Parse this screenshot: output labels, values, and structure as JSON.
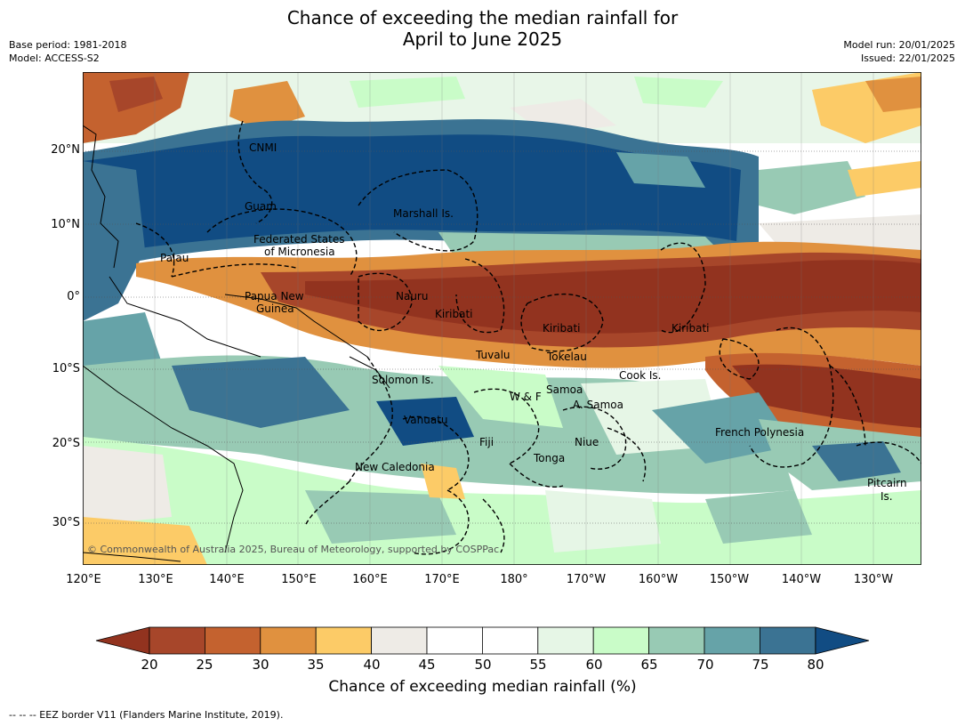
{
  "title": {
    "line1": "Chance of exceeding the median rainfall for",
    "line2": "April to June 2025"
  },
  "meta_left": {
    "base_period": "Base period: 1981-2018",
    "model": "Model: ACCESS-S2"
  },
  "meta_right": {
    "model_run": "Model run: 20/01/2025",
    "issued": "Issued: 22/01/2025"
  },
  "map": {
    "lat_labels": [
      "20°N",
      "10°N",
      "0°",
      "10°S",
      "20°S",
      "30°S"
    ],
    "lon_labels": [
      "120°E",
      "130°E",
      "140°E",
      "150°E",
      "160°E",
      "170°E",
      "180°",
      "170°W",
      "160°W",
      "150°W",
      "140°W",
      "130°W"
    ],
    "places": {
      "cnmi": "CNMI",
      "guam": "Guam",
      "marshall": "Marshall Is.",
      "fsm_1": "Federated States",
      "fsm_2": "of Micronesia",
      "palau": "Palau",
      "png_1": "Papua New",
      "png_2": "Guinea",
      "nauru": "Nauru",
      "kiribati_w": "Kiribati",
      "kiribati_c": "Kiribati",
      "kiribati_e": "Kiribati",
      "tuvalu": "Tuvalu",
      "tokelau": "Tokelau",
      "cook": "Cook Is.",
      "solomon": "Solomon Is.",
      "wf": "W & F",
      "samoa": "Samoa",
      "asamoa": "A. Samoa",
      "vanuatu": "Vanuatu",
      "fiji": "Fiji",
      "niue": "Niue",
      "tonga": "Tonga",
      "french_poly": "French Polynesia",
      "new_caledonia": "New Caledonia",
      "pitcairn_1": "Pitcairn",
      "pitcairn_2": "Is."
    },
    "copyright": "© Commonwealth of Australia 2025, Bureau of Meteorology, supported by COSPPac"
  },
  "colorbar": {
    "ticks": [
      "20",
      "25",
      "30",
      "35",
      "40",
      "45",
      "50",
      "55",
      "60",
      "65",
      "70",
      "75",
      "80"
    ],
    "colors": [
      "#a7462a",
      "#c4622f",
      "#e0913f",
      "#fccb67",
      "#eeebe6",
      "#ffffff",
      "#ffffff",
      "#e6f6e6",
      "#c9fcc8",
      "#98cab4",
      "#66a3a8",
      "#3b7393"
    ],
    "under_color": "#92331f",
    "over_color": "#114c83",
    "label": "Chance of exceeding median rainfall (%)"
  },
  "footer": "--  --  -- EEZ border V11 (Flanders Marine Institute, 2019)."
}
